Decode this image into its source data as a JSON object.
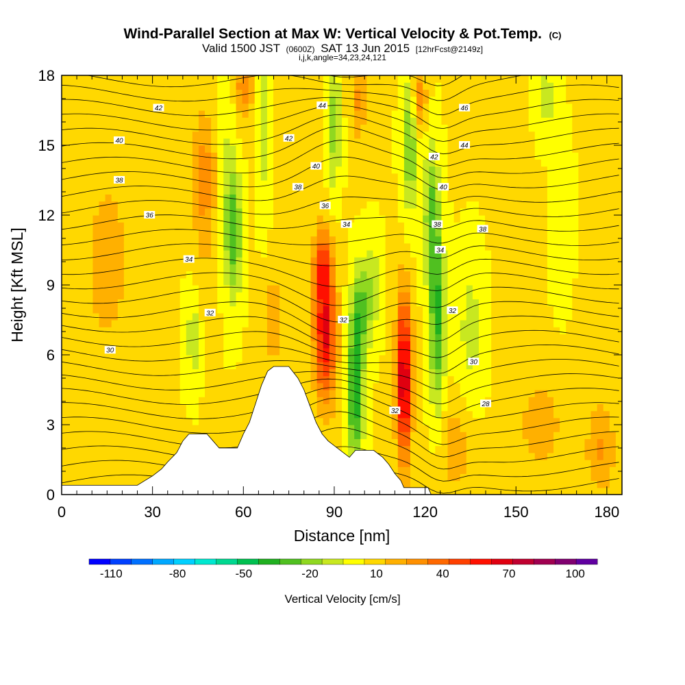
{
  "chart_data": {
    "type": "heatmap",
    "title": "Wind-Parallel Section at Max W: Vertical Velocity & Pot.Temp.",
    "title_unit": "(C)",
    "subtitle_parts": [
      "Valid 1500 JST",
      "(0600Z)",
      "SAT 13 Jun 2015",
      "[12hrFcst@2149z]"
    ],
    "subtitle2": "i,j,k,angle=34,23,24,121",
    "xlabel": "Distance [nm]",
    "ylabel": "Height [Kft MSL]",
    "xlim": [
      0,
      185
    ],
    "ylim": [
      0,
      18
    ],
    "x_ticks": [
      "0",
      "30",
      "60",
      "90",
      "120",
      "150",
      "180"
    ],
    "y_ticks": [
      "0",
      "3",
      "6",
      "9",
      "12",
      "15",
      "18"
    ],
    "colorbar": {
      "title": "Vertical Velocity [cm/s]",
      "tick_labels": [
        "-110",
        "-80",
        "-50",
        "-20",
        "10",
        "40",
        "70",
        "100"
      ],
      "range": [
        -120,
        110
      ],
      "colors": [
        "#0000ff",
        "#0040ff",
        "#0070ff",
        "#00a8ff",
        "#00d0ff",
        "#00e8d0",
        "#00d890",
        "#00c050",
        "#20b020",
        "#50c020",
        "#90d820",
        "#c8e820",
        "#ffff00",
        "#ffd800",
        "#ffb000",
        "#ff9000",
        "#ff6800",
        "#ff4000",
        "#ff1000",
        "#e00010",
        "#c00030",
        "#a00050",
        "#800070",
        "#6000a0"
      ]
    },
    "velocity_features": [
      {
        "x": 47,
        "y": 13.5,
        "sx": 4,
        "sy": 3,
        "w": 25
      },
      {
        "x": 47,
        "y": 7.5,
        "sx": 3.5,
        "sy": 2.5,
        "w": 10
      },
      {
        "x": 57,
        "y": 11,
        "sx": 2.5,
        "sy": 2.5,
        "w": -30
      },
      {
        "x": 55,
        "y": 13,
        "sx": 3,
        "sy": 4,
        "w": -15
      },
      {
        "x": 44,
        "y": 6.8,
        "sx": 3,
        "sy": 2,
        "w": -20
      },
      {
        "x": 70,
        "y": 7.5,
        "sx": 3,
        "sy": 2.5,
        "w": 15
      },
      {
        "x": 60,
        "y": 17.5,
        "sx": 3,
        "sy": 1.5,
        "w": 25
      },
      {
        "x": 67,
        "y": 16,
        "sx": 2,
        "sy": 4,
        "w": -15
      },
      {
        "x": 87,
        "y": 7,
        "sx": 3.5,
        "sy": 3,
        "w": 60
      },
      {
        "x": 86,
        "y": 10,
        "sx": 3,
        "sy": 1.5,
        "w": 30
      },
      {
        "x": 97,
        "y": 4.5,
        "sx": 2.5,
        "sy": 3,
        "w": -50
      },
      {
        "x": 99,
        "y": 8,
        "sx": 3,
        "sy": 2,
        "w": -30
      },
      {
        "x": 103,
        "y": 9,
        "sx": 2.5,
        "sy": 2,
        "w": -15
      },
      {
        "x": 90,
        "y": 16,
        "sx": 2,
        "sy": 3,
        "w": -25
      },
      {
        "x": 98,
        "y": 17,
        "sx": 2.5,
        "sy": 2,
        "w": 20
      },
      {
        "x": 113,
        "y": 5,
        "sx": 2.5,
        "sy": 3.5,
        "w": 70
      },
      {
        "x": 118,
        "y": 17,
        "sx": 2.5,
        "sy": 1.5,
        "w": 25
      },
      {
        "x": 124,
        "y": 7.5,
        "sx": 2.5,
        "sy": 4,
        "w": -40
      },
      {
        "x": 122,
        "y": 12,
        "sx": 2.5,
        "sy": 3,
        "w": -30
      },
      {
        "x": 115,
        "y": 15,
        "sx": 2.5,
        "sy": 3,
        "w": -30
      },
      {
        "x": 135,
        "y": 7,
        "sx": 4,
        "sy": 3,
        "w": -15
      },
      {
        "x": 160,
        "y": 17,
        "sx": 3,
        "sy": 1.5,
        "w": -15
      },
      {
        "x": 165,
        "y": 12,
        "sx": 3,
        "sy": 3,
        "w": -10
      },
      {
        "x": 158,
        "y": 3,
        "sx": 8,
        "sy": 2,
        "w": 15
      },
      {
        "x": 178,
        "y": 2,
        "sx": 5,
        "sy": 2,
        "w": 20
      },
      {
        "x": 15,
        "y": 10,
        "sx": 8,
        "sy": 4,
        "w": 15
      },
      {
        "x": 130,
        "y": 2,
        "sx": 6,
        "sy": 2,
        "w": 15
      }
    ],
    "terrain": [
      [
        0,
        0.4
      ],
      [
        25,
        0.4
      ],
      [
        30,
        0.8
      ],
      [
        33,
        1.1
      ],
      [
        35,
        1.4
      ],
      [
        38,
        1.8
      ],
      [
        40,
        2.3
      ],
      [
        42,
        2.6
      ],
      [
        48,
        2.6
      ],
      [
        50,
        2.3
      ],
      [
        52,
        2.0
      ],
      [
        58,
        2.0
      ],
      [
        60,
        2.6
      ],
      [
        62,
        3.1
      ],
      [
        64,
        3.9
      ],
      [
        66,
        4.7
      ],
      [
        68,
        5.3
      ],
      [
        70,
        5.5
      ],
      [
        75,
        5.5
      ],
      [
        78,
        5.0
      ],
      [
        80,
        4.5
      ],
      [
        82,
        3.8
      ],
      [
        84,
        3.1
      ],
      [
        86,
        2.6
      ],
      [
        88,
        2.3
      ],
      [
        90,
        2.1
      ],
      [
        92,
        1.9
      ],
      [
        95,
        1.6
      ],
      [
        97,
        1.9
      ],
      [
        103,
        1.9
      ],
      [
        106,
        1.6
      ],
      [
        108,
        1.3
      ],
      [
        110,
        0.9
      ],
      [
        112,
        0.6
      ],
      [
        113,
        0.3
      ],
      [
        121,
        0.3
      ],
      [
        122,
        0
      ],
      [
        0,
        0
      ]
    ],
    "theta_labels": [
      {
        "text": "42",
        "x": 32,
        "y": 16.6
      },
      {
        "text": "40",
        "x": 19,
        "y": 15.2
      },
      {
        "text": "38",
        "x": 19,
        "y": 13.5
      },
      {
        "text": "36",
        "x": 29,
        "y": 12.0
      },
      {
        "text": "34",
        "x": 42,
        "y": 10.1
      },
      {
        "text": "32",
        "x": 49,
        "y": 7.8
      },
      {
        "text": "30",
        "x": 16,
        "y": 6.2
      },
      {
        "text": "44",
        "x": 86,
        "y": 16.7
      },
      {
        "text": "42",
        "x": 75,
        "y": 15.3
      },
      {
        "text": "40",
        "x": 84,
        "y": 14.1
      },
      {
        "text": "38",
        "x": 78,
        "y": 13.2
      },
      {
        "text": "36",
        "x": 87,
        "y": 12.4
      },
      {
        "text": "34",
        "x": 94,
        "y": 11.6
      },
      {
        "text": "32",
        "x": 93,
        "y": 7.5
      },
      {
        "text": "32",
        "x": 110,
        "y": 3.6
      },
      {
        "text": "46",
        "x": 133,
        "y": 16.6
      },
      {
        "text": "44",
        "x": 133,
        "y": 15.0
      },
      {
        "text": "42",
        "x": 123,
        "y": 14.5
      },
      {
        "text": "40",
        "x": 126,
        "y": 13.2
      },
      {
        "text": "38",
        "x": 124,
        "y": 11.6
      },
      {
        "text": "38",
        "x": 139,
        "y": 11.4
      },
      {
        "text": "34",
        "x": 125,
        "y": 10.5
      },
      {
        "text": "32",
        "x": 129,
        "y": 7.9
      },
      {
        "text": "30",
        "x": 136,
        "y": 5.7
      },
      {
        "text": "28",
        "x": 140,
        "y": 3.9
      }
    ]
  }
}
